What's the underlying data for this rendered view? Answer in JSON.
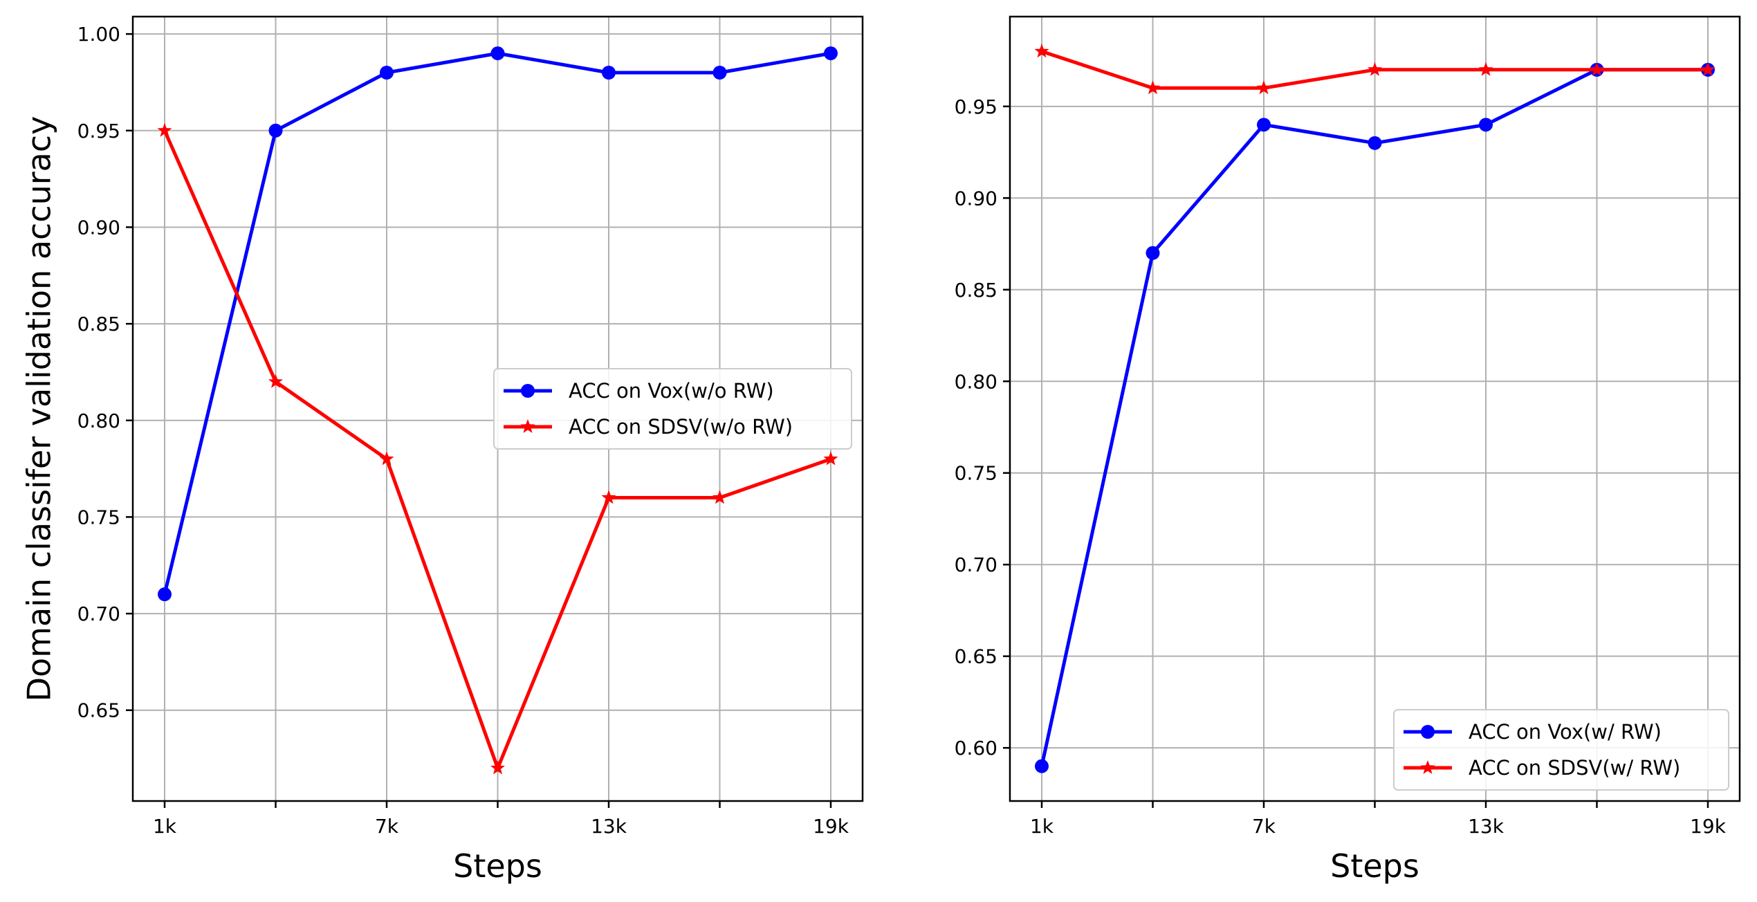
{
  "chart_data": [
    {
      "type": "line",
      "title": "",
      "xlabel": "Steps",
      "ylabel": "Domain classifer validation accuracy",
      "x_ticks": [
        "1k",
        "",
        "7k",
        "",
        "13k",
        "",
        "19k"
      ],
      "ylim": [
        0.603,
        1.009
      ],
      "y_ticks": [
        0.65,
        0.7,
        0.75,
        0.8,
        0.85,
        0.9,
        0.95,
        1.0
      ],
      "y_tick_labels": [
        "0.65",
        "0.70",
        "0.75",
        "0.80",
        "0.85",
        "0.90",
        "0.95",
        "1.00"
      ],
      "grid": true,
      "legend_position": "center-right",
      "series": [
        {
          "name": "ACC on Vox(w/o RW)",
          "color": "#0000ff",
          "marker": "circle",
          "values": [
            0.71,
            0.95,
            0.98,
            0.99,
            0.98,
            0.98,
            0.99
          ]
        },
        {
          "name": "ACC on SDSV(w/o RW)",
          "color": "#ff0000",
          "marker": "star",
          "values": [
            0.95,
            0.82,
            0.78,
            0.62,
            0.76,
            0.76,
            0.78
          ]
        }
      ]
    },
    {
      "type": "line",
      "title": "",
      "xlabel": "Steps",
      "ylabel": "",
      "x_ticks": [
        "1k",
        "",
        "7k",
        "",
        "13k",
        "",
        "19k"
      ],
      "ylim": [
        0.571,
        0.999
      ],
      "y_ticks": [
        0.6,
        0.65,
        0.7,
        0.75,
        0.8,
        0.85,
        0.9,
        0.95
      ],
      "y_tick_labels": [
        "0.60",
        "0.65",
        "0.70",
        "0.75",
        "0.80",
        "0.85",
        "0.90",
        "0.95"
      ],
      "grid": true,
      "legend_position": "lower-right",
      "series": [
        {
          "name": "ACC on Vox(w/ RW)",
          "color": "#0000ff",
          "marker": "circle",
          "values": [
            0.59,
            0.87,
            0.94,
            0.93,
            0.94,
            0.97,
            0.97
          ]
        },
        {
          "name": "ACC on SDSV(w/ RW)",
          "color": "#ff0000",
          "marker": "star",
          "values": [
            0.98,
            0.96,
            0.96,
            0.97,
            0.97,
            0.97,
            0.97
          ]
        }
      ]
    }
  ]
}
